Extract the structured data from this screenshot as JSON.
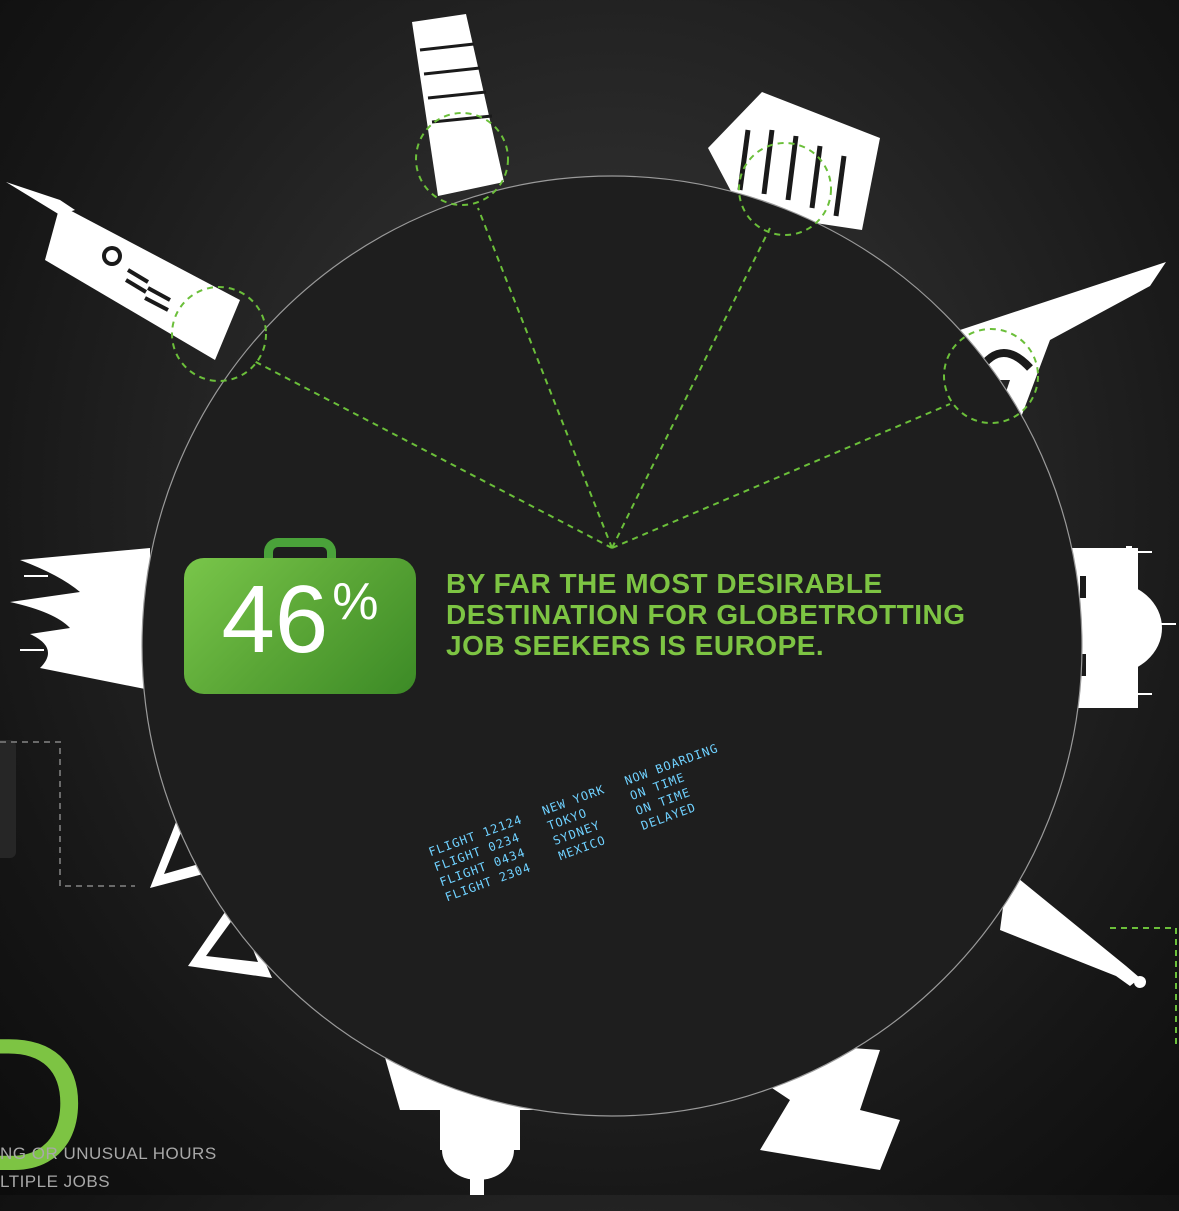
{
  "stat": {
    "number": "46",
    "percent_sign": "%"
  },
  "headline_lines": [
    "BY FAR THE MOST DESIRABLE",
    "DESTINATION FOR GLOBETROTTING",
    "JOB SEEKERS IS EUROPE."
  ],
  "flight_board": {
    "flights": [
      "FLIGHT 12124",
      "FLIGHT 0234",
      "FLIGHT 0434",
      "FLIGHT 2304"
    ],
    "cities": [
      "NEW YORK",
      "TOKYO",
      "SYDNEY",
      "MEXICO"
    ],
    "statuses": [
      "NOW BOARDING",
      "ON TIME",
      "ON TIME",
      "DELAYED"
    ]
  },
  "big_letter": "D",
  "footer_lines": [
    "NG OR UNUSUAL HOURS",
    "LTIPLE JOBS"
  ],
  "landmark_icons": [
    "big-ben-icon",
    "leaning-tower-pisa-icon",
    "colosseum-icon",
    "eiffel-tower-icon",
    "taj-mahal-icon",
    "sydney-opera-house-icon",
    "pyramids-icon",
    "us-capitol-icon",
    "forbidden-city-icon",
    "statue-of-liberty-icon"
  ],
  "colors": {
    "accent_green": "#7dc443",
    "dashed_line_green": "#6bbf3a",
    "globe": "#1e1e1e",
    "flight_board_text": "#6fd1ff",
    "footer_text": "#a8a8a8"
  }
}
